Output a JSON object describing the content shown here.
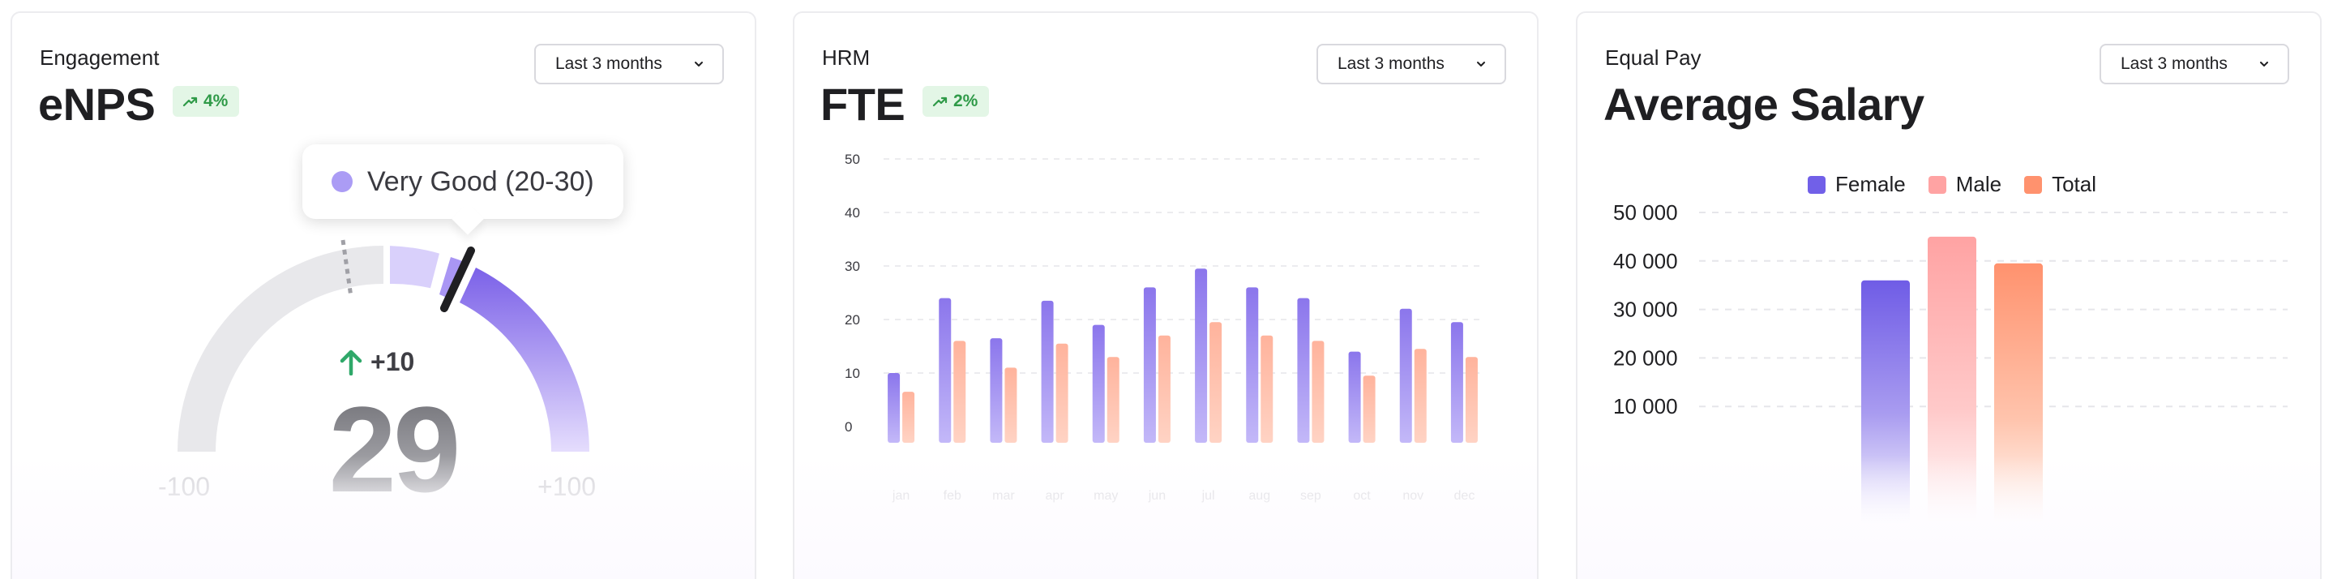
{
  "cards": {
    "enps": {
      "subtitle": "Engagement",
      "title": "eNPS",
      "badge": "4%",
      "range": "Last 3 months",
      "tooltip": "Very Good (20-30)",
      "delta": "+10",
      "score": "29",
      "min_label": "-100",
      "max_label": "+100"
    },
    "fte": {
      "subtitle": "HRM",
      "title": "FTE",
      "badge": "2%",
      "range": "Last 3 months"
    },
    "pay": {
      "subtitle": "Equal Pay",
      "title": "Average Salary",
      "range": "Last 3 months",
      "legend": [
        "Female",
        "Male",
        "Total"
      ]
    }
  },
  "colors": {
    "purple": "#7b61e8",
    "purple_light": "#d6cdfb",
    "peach": "#ffb49e",
    "pink": "#ffa3a3",
    "orange": "#ff926e",
    "track": "#e5e5e8",
    "badge_green": "#2f9a48"
  },
  "icons": {
    "trend": "trend-up-icon",
    "chevron": "chevron-down-icon",
    "arrow": "arrow-up-icon"
  },
  "chart_data": [
    {
      "type": "gauge",
      "value": 29,
      "range": [
        -100,
        100
      ],
      "band": "Very Good (20-30)",
      "previous_change": 10
    },
    {
      "type": "bar",
      "categories": [
        "jan",
        "feb",
        "mar",
        "apr",
        "may",
        "jun",
        "jul",
        "aug",
        "sep",
        "oct",
        "nov",
        "dec"
      ],
      "series": [
        {
          "values": [
            10,
            24,
            16.5,
            23.5,
            19,
            26,
            29.5,
            26,
            24,
            14,
            22,
            19.5
          ]
        },
        {
          "values": [
            6.5,
            16,
            11,
            15.5,
            13,
            17,
            19.5,
            17,
            16,
            9.5,
            14.5,
            13
          ]
        }
      ],
      "yticks": [
        0,
        10,
        20,
        30,
        40,
        50
      ],
      "ylim": [
        -5,
        50
      ],
      "grid": true
    },
    {
      "type": "bar",
      "categories": [
        "Female",
        "Male",
        "Total"
      ],
      "values": [
        36000,
        45000,
        39500
      ],
      "yticks": [
        "10 000",
        "20 000",
        "30 000",
        "40 000",
        "50 000"
      ],
      "ylim": [
        0,
        50000
      ],
      "legend_position": "top",
      "grid": true
    }
  ]
}
